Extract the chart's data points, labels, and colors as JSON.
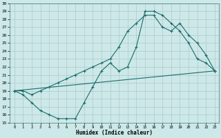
{
  "xlabel": "Humidex (Indice chaleur)",
  "bg_color": "#cce8e8",
  "grid_color": "#b0c8c8",
  "line_color": "#1a6b6b",
  "xlim": [
    -0.5,
    23.5
  ],
  "ylim": [
    15,
    30
  ],
  "xticks": [
    0,
    1,
    2,
    3,
    4,
    5,
    6,
    7,
    8,
    9,
    10,
    11,
    12,
    13,
    14,
    15,
    16,
    17,
    18,
    19,
    20,
    21,
    22,
    23
  ],
  "yticks": [
    15,
    16,
    17,
    18,
    19,
    20,
    21,
    22,
    23,
    24,
    25,
    26,
    27,
    28,
    29,
    30
  ],
  "line1_x": [
    0,
    1,
    2,
    3,
    4,
    5,
    6,
    7,
    8,
    9,
    10,
    11,
    12,
    13,
    14,
    15,
    16,
    17,
    18,
    19,
    20,
    21,
    22,
    23
  ],
  "line1_y": [
    19.0,
    18.5,
    17.5,
    16.5,
    16.0,
    15.5,
    15.5,
    15.5,
    17.5,
    19.5,
    21.5,
    22.5,
    21.5,
    22.0,
    24.5,
    29.0,
    29.0,
    28.5,
    27.5,
    26.5,
    25.0,
    23.0,
    22.5,
    21.5
  ],
  "line2_x": [
    0,
    1,
    2,
    3,
    4,
    5,
    6,
    7,
    8,
    9,
    10,
    11,
    12,
    13,
    14,
    15,
    16,
    17,
    18,
    19,
    20,
    21,
    22,
    23
  ],
  "line2_y": [
    19.0,
    19.0,
    18.5,
    19.0,
    19.5,
    20.0,
    20.5,
    21.0,
    21.5,
    22.0,
    22.5,
    23.0,
    24.5,
    26.5,
    27.5,
    28.5,
    28.5,
    27.0,
    26.5,
    27.5,
    26.0,
    25.0,
    23.5,
    21.5
  ],
  "line3_x": [
    0,
    23
  ],
  "line3_y": [
    19.0,
    21.5
  ]
}
